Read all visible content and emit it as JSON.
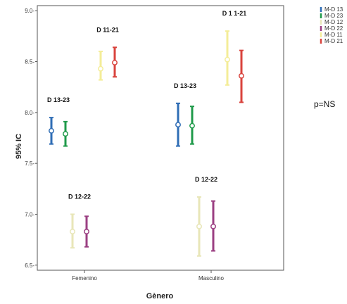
{
  "chart_data": {
    "type": "errorbar",
    "xlabel": "Gènero",
    "ylabel": "95% IC",
    "ylim": [
      6.45,
      9.05
    ],
    "yticks": [
      6.5,
      7.0,
      7.5,
      8.0,
      8.5,
      9.0
    ],
    "ytick_labels": [
      "6.5-",
      "7.0-",
      "7.5-",
      "8.0-",
      "8.5-",
      "9.0-"
    ],
    "categories": [
      "Femenino",
      "Masculino"
    ],
    "series": [
      {
        "name": "M-D 13",
        "color": "#2f6db5",
        "points": [
          {
            "category": "Femenino",
            "mean": 7.82,
            "low": 7.69,
            "high": 7.95
          },
          {
            "category": "Masculino",
            "mean": 7.88,
            "low": 7.67,
            "high": 8.09
          }
        ]
      },
      {
        "name": "M-D 23",
        "color": "#1f9a4a",
        "points": [
          {
            "category": "Femenino",
            "mean": 7.79,
            "low": 7.67,
            "high": 7.91
          },
          {
            "category": "Masculino",
            "mean": 7.87,
            "low": 7.69,
            "high": 8.06
          }
        ]
      },
      {
        "name": "M-D 12",
        "color": "#e8e6b8",
        "points": [
          {
            "category": "Femenino",
            "mean": 6.83,
            "low": 6.67,
            "high": 7.0
          },
          {
            "category": "Masculino",
            "mean": 6.88,
            "low": 6.59,
            "high": 7.17
          }
        ]
      },
      {
        "name": "M-D 22",
        "color": "#9b3f82",
        "points": [
          {
            "category": "Femenino",
            "mean": 6.83,
            "low": 6.68,
            "high": 6.98
          },
          {
            "category": "Masculino",
            "mean": 6.88,
            "low": 6.64,
            "high": 7.13
          }
        ]
      },
      {
        "name": "M-D 11",
        "color": "#f4ed98",
        "points": [
          {
            "category": "Femenino",
            "mean": 8.43,
            "low": 8.32,
            "high": 8.6
          },
          {
            "category": "Masculino",
            "mean": 8.52,
            "low": 8.27,
            "high": 8.8
          }
        ]
      },
      {
        "name": "M-D 21",
        "color": "#d9433d",
        "points": [
          {
            "category": "Femenino",
            "mean": 8.49,
            "low": 8.35,
            "high": 8.64
          },
          {
            "category": "Masculino",
            "mean": 8.36,
            "low": 8.1,
            "high": 8.61
          }
        ]
      }
    ],
    "annotations": [
      {
        "text": "D 13-23",
        "category": "Femenino",
        "pair": [
          0,
          1
        ]
      },
      {
        "text": "D 11-21",
        "category": "Femenino",
        "pair": [
          4,
          5
        ]
      },
      {
        "text": "D 12-22",
        "category": "Femenino",
        "pair": [
          2,
          3
        ]
      },
      {
        "text": "D 13-23",
        "category": "Masculino",
        "pair": [
          0,
          1
        ]
      },
      {
        "text": "D 1 1-21",
        "category": "Masculino",
        "pair": [
          4,
          5
        ]
      },
      {
        "text": "D 12-22",
        "category": "Masculino",
        "pair": [
          2,
          3
        ]
      }
    ],
    "note": "p=NS",
    "legend_position": "top-right, outside plot"
  }
}
